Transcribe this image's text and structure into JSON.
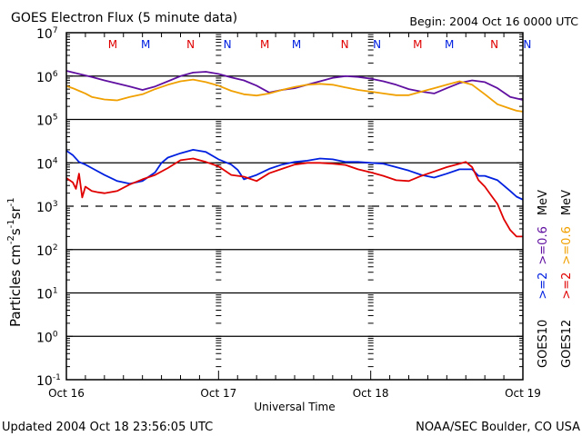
{
  "chart_data": {
    "type": "line",
    "title": "GOES Electron Flux (5 minute data)",
    "begin_label": "Begin: 2004 Oct 16 0000 UTC",
    "xlabel": "Universal Time",
    "ylabel_main": "Particles cm",
    "ylabel_sup1": "-2",
    "ylabel_s": "s",
    "ylabel_sup2": "-1",
    "ylabel_sr": "sr",
    "ylabel_sup3": "-1",
    "xlim_hours": [
      0,
      72
    ],
    "ylim_log10": [
      -1,
      7
    ],
    "x_tick_labels": [
      {
        "hour": 0,
        "label": "Oct 16"
      },
      {
        "hour": 24,
        "label": "Oct 17"
      },
      {
        "hour": 48,
        "label": "Oct 18"
      },
      {
        "hour": 72,
        "label": "Oct 19"
      }
    ],
    "y_tick_labels": [
      {
        "exp": 7,
        "base": "10",
        "sup": "7"
      },
      {
        "exp": 6,
        "base": "10",
        "sup": "6"
      },
      {
        "exp": 5,
        "base": "10",
        "sup": "5"
      },
      {
        "exp": 4,
        "base": "10",
        "sup": "4"
      },
      {
        "exp": 3,
        "base": "10",
        "sup": "3"
      },
      {
        "exp": 2,
        "base": "10",
        "sup": "2"
      },
      {
        "exp": 1,
        "base": "10",
        "sup": "1"
      },
      {
        "exp": 0,
        "base": "10",
        "sup": "0"
      },
      {
        "exp": -1,
        "base": "10",
        "sup": "-1"
      }
    ],
    "gridlines_log10": [
      6,
      5,
      4,
      2,
      1,
      0
    ],
    "threshold_log10": 3,
    "markers": [
      {
        "hour": 7.3,
        "label": "M",
        "color": "#e00000"
      },
      {
        "hour": 12.5,
        "label": "M",
        "color": "#0020e0"
      },
      {
        "hour": 19.6,
        "label": "N",
        "color": "#e00000"
      },
      {
        "hour": 25.4,
        "label": "N",
        "color": "#0020e0"
      },
      {
        "hour": 31.3,
        "label": "M",
        "color": "#e00000"
      },
      {
        "hour": 36.3,
        "label": "M",
        "color": "#0020e0"
      },
      {
        "hour": 43.9,
        "label": "N",
        "color": "#e00000"
      },
      {
        "hour": 49.0,
        "label": "N",
        "color": "#0020e0"
      },
      {
        "hour": 55.4,
        "label": "M",
        "color": "#e00000"
      },
      {
        "hour": 60.4,
        "label": "M",
        "color": "#0020e0"
      },
      {
        "hour": 67.5,
        "label": "N",
        "color": "#e00000"
      },
      {
        "hour": 72.7,
        "label": "N",
        "color": "#0020e0"
      }
    ],
    "legend": [
      {
        "prefix": "GOES10",
        "items": [
          {
            "label": ">=2",
            "color": "#0020e0"
          },
          {
            "label": ">=0.6",
            "color": "#6010a0"
          },
          {
            "label": "MeV",
            "color": "#000000"
          }
        ]
      },
      {
        "prefix": "GOES12",
        "items": [
          {
            "label": ">=2",
            "color": "#e00000"
          },
          {
            "label": ">=0.6",
            "color": "#f0a000"
          },
          {
            "label": "MeV",
            "color": "#000000"
          }
        ]
      }
    ],
    "legend_placement": "right-vertical",
    "series": [
      {
        "name": "GOES10 >=0.6 MeV",
        "color": "#6010a0",
        "hours": [
          0,
          2,
          4,
          6,
          8,
          10,
          12,
          14,
          16,
          18,
          20,
          22,
          24,
          26,
          28,
          30,
          32,
          34,
          36,
          38,
          40,
          42,
          44,
          46,
          48,
          50,
          52,
          54,
          56,
          58,
          60,
          62,
          64,
          66,
          68,
          70,
          72
        ],
        "log10": [
          6.12,
          6.05,
          5.98,
          5.9,
          5.83,
          5.76,
          5.68,
          5.76,
          5.88,
          6.0,
          6.08,
          6.1,
          6.05,
          5.97,
          5.9,
          5.78,
          5.62,
          5.68,
          5.72,
          5.8,
          5.88,
          5.96,
          6.0,
          5.98,
          5.94,
          5.88,
          5.8,
          5.7,
          5.64,
          5.6,
          5.72,
          5.84,
          5.9,
          5.86,
          5.72,
          5.52,
          5.45
        ]
      },
      {
        "name": "GOES12 >=0.6 MeV",
        "color": "#f0a000",
        "hours": [
          0,
          1,
          2,
          3,
          4,
          6,
          8,
          10,
          12,
          14,
          16,
          18,
          20,
          22,
          24,
          26,
          28,
          30,
          32,
          34,
          36,
          38,
          40,
          42,
          44,
          46,
          48,
          50,
          52,
          54,
          56,
          58,
          60,
          62,
          64,
          66,
          68,
          70,
          71,
          72
        ],
        "log10": [
          5.77,
          5.72,
          5.66,
          5.6,
          5.52,
          5.46,
          5.44,
          5.52,
          5.58,
          5.7,
          5.8,
          5.88,
          5.92,
          5.86,
          5.78,
          5.66,
          5.58,
          5.55,
          5.6,
          5.68,
          5.75,
          5.8,
          5.82,
          5.8,
          5.74,
          5.68,
          5.64,
          5.6,
          5.56,
          5.56,
          5.64,
          5.72,
          5.8,
          5.88,
          5.8,
          5.58,
          5.35,
          5.25,
          5.2,
          5.18
        ]
      },
      {
        "name": "GOES10 >=2 MeV",
        "color": "#0020e0",
        "hours": [
          0,
          1,
          2,
          3,
          4,
          6,
          8,
          10,
          12,
          14,
          15,
          16,
          18,
          20,
          22,
          24,
          26,
          27,
          28,
          30,
          32,
          34,
          36,
          38,
          40,
          42,
          44,
          46,
          48,
          50,
          52,
          54,
          56,
          58,
          60,
          62,
          64,
          65,
          66,
          68,
          70,
          71,
          72
        ],
        "log10": [
          4.28,
          4.18,
          4.02,
          3.96,
          3.88,
          3.72,
          3.58,
          3.52,
          3.58,
          3.78,
          4.0,
          4.12,
          4.22,
          4.3,
          4.25,
          4.08,
          3.96,
          3.84,
          3.62,
          3.72,
          3.86,
          3.96,
          4.02,
          4.05,
          4.1,
          4.08,
          4.02,
          4.02,
          4.0,
          3.98,
          3.9,
          3.82,
          3.72,
          3.66,
          3.75,
          3.85,
          3.85,
          3.7,
          3.7,
          3.6,
          3.35,
          3.22,
          3.15
        ]
      },
      {
        "name": "GOES12 >=2 MeV",
        "color": "#e00000",
        "hours": [
          0,
          1,
          1.5,
          2,
          2.5,
          3,
          4,
          5,
          6,
          8,
          10,
          12,
          14,
          16,
          18,
          20,
          22,
          24,
          26,
          28,
          30,
          32,
          34,
          36,
          38,
          40,
          42,
          44,
          46,
          48,
          50,
          52,
          54,
          56,
          58,
          60,
          62,
          63,
          64,
          65,
          66,
          67,
          68,
          69,
          70,
          71,
          72
        ],
        "log10": [
          3.65,
          3.55,
          3.4,
          3.75,
          3.2,
          3.45,
          3.35,
          3.32,
          3.3,
          3.35,
          3.5,
          3.62,
          3.72,
          3.88,
          4.06,
          4.1,
          4.02,
          3.92,
          3.72,
          3.68,
          3.58,
          3.76,
          3.86,
          3.96,
          4.0,
          4.0,
          3.98,
          3.95,
          3.85,
          3.78,
          3.7,
          3.6,
          3.58,
          3.7,
          3.8,
          3.9,
          3.98,
          4.02,
          3.9,
          3.6,
          3.45,
          3.25,
          3.05,
          2.7,
          2.45,
          2.3,
          2.3
        ]
      }
    ]
  },
  "footer": {
    "updated": "Updated 2004 Oct 18 23:56:05 UTC",
    "source": "NOAA/SEC Boulder, CO USA"
  }
}
